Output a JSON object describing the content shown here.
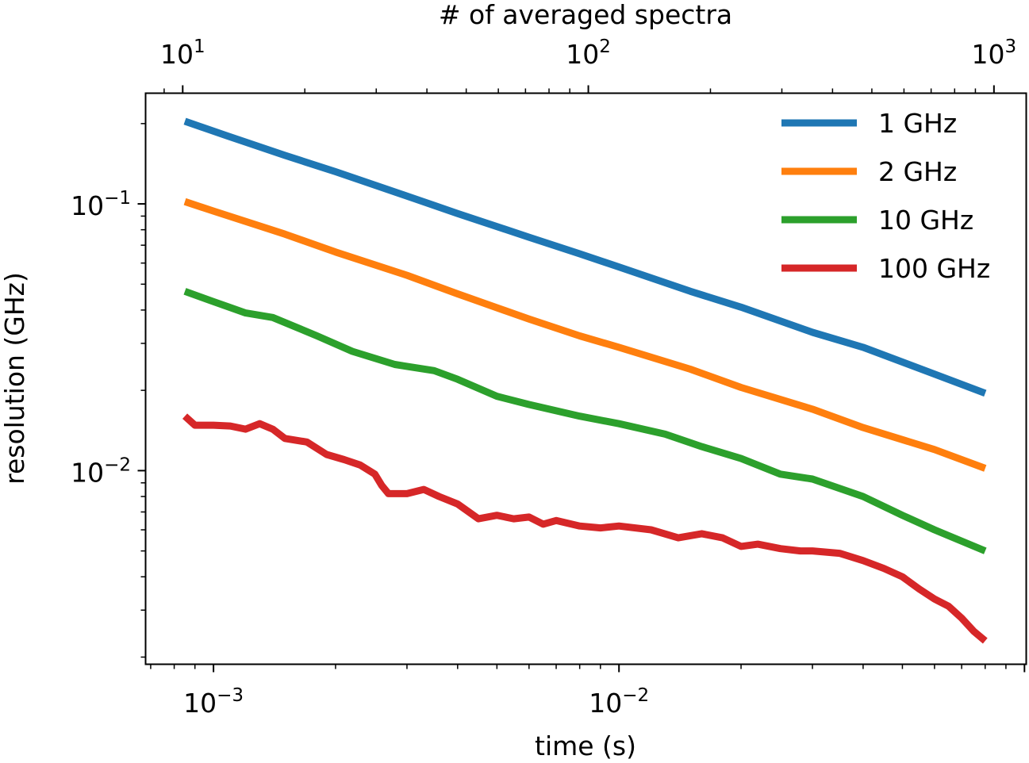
{
  "chart_data": {
    "type": "line",
    "xlabel": "time (s)",
    "x2label": "# of averaged spectra",
    "ylabel": "resolution (GHz)",
    "xscale": "log",
    "yscale": "log",
    "xlim": [
      0.00068,
      0.101
    ],
    "x2lim": [
      8.1,
      1201
    ],
    "ylim": [
      0.00188,
      0.26
    ],
    "x_ticks": [
      0.001,
      0.01
    ],
    "x_tick_labels": [
      {
        "base": "10",
        "exp": "−3"
      },
      {
        "base": "10",
        "exp": "−2"
      }
    ],
    "x2_ticks": [
      10,
      100,
      1000
    ],
    "x2_tick_labels": [
      {
        "base": "10",
        "exp": "1"
      },
      {
        "base": "10",
        "exp": "2"
      },
      {
        "base": "10",
        "exp": "3"
      }
    ],
    "y_ticks": [
      0.1,
      0.01
    ],
    "y_tick_labels": [
      {
        "base": "10",
        "exp": "−1"
      },
      {
        "base": "10",
        "exp": "−2"
      }
    ],
    "grid": false,
    "legend_position": "top-right",
    "series": [
      {
        "name": "1 GHz",
        "color": "#1f77b4",
        "points": [
          [
            0.00085,
            0.204
          ],
          [
            0.00108,
            0.18
          ],
          [
            0.0015,
            0.152
          ],
          [
            0.002,
            0.132
          ],
          [
            0.003,
            0.107
          ],
          [
            0.004,
            0.092
          ],
          [
            0.006,
            0.075
          ],
          [
            0.008,
            0.065
          ],
          [
            0.01,
            0.058
          ],
          [
            0.015,
            0.047
          ],
          [
            0.02,
            0.041
          ],
          [
            0.03,
            0.033
          ],
          [
            0.04,
            0.029
          ],
          [
            0.06,
            0.023
          ],
          [
            0.08,
            0.0195
          ]
        ]
      },
      {
        "name": "2 GHz",
        "color": "#ff7f0e",
        "points": [
          [
            0.00085,
            0.102
          ],
          [
            0.001,
            0.094
          ],
          [
            0.0015,
            0.077
          ],
          [
            0.002,
            0.066
          ],
          [
            0.003,
            0.054
          ],
          [
            0.004,
            0.046
          ],
          [
            0.006,
            0.037
          ],
          [
            0.008,
            0.032
          ],
          [
            0.01,
            0.029
          ],
          [
            0.015,
            0.024
          ],
          [
            0.02,
            0.0205
          ],
          [
            0.03,
            0.017
          ],
          [
            0.04,
            0.0145
          ],
          [
            0.06,
            0.012
          ],
          [
            0.08,
            0.0102
          ]
        ]
      },
      {
        "name": "10 GHz",
        "color": "#2ca02c",
        "points": [
          [
            0.00085,
            0.047
          ],
          [
            0.001,
            0.043
          ],
          [
            0.0012,
            0.039
          ],
          [
            0.0014,
            0.0375
          ],
          [
            0.0018,
            0.032
          ],
          [
            0.0022,
            0.028
          ],
          [
            0.0028,
            0.025
          ],
          [
            0.0035,
            0.0237
          ],
          [
            0.004,
            0.022
          ],
          [
            0.005,
            0.019
          ],
          [
            0.006,
            0.0177
          ],
          [
            0.008,
            0.016
          ],
          [
            0.01,
            0.015
          ],
          [
            0.013,
            0.0137
          ],
          [
            0.016,
            0.0123
          ],
          [
            0.02,
            0.0111
          ],
          [
            0.025,
            0.0097
          ],
          [
            0.03,
            0.0093
          ],
          [
            0.04,
            0.008
          ],
          [
            0.05,
            0.0068
          ],
          [
            0.06,
            0.006
          ],
          [
            0.08,
            0.005
          ]
        ]
      },
      {
        "name": "100 GHz",
        "color": "#d62728",
        "points": [
          [
            0.00085,
            0.016
          ],
          [
            0.0009,
            0.0148
          ],
          [
            0.001,
            0.0148
          ],
          [
            0.0011,
            0.0147
          ],
          [
            0.0012,
            0.0143
          ],
          [
            0.0013,
            0.015
          ],
          [
            0.0014,
            0.0143
          ],
          [
            0.0015,
            0.0132
          ],
          [
            0.0017,
            0.0128
          ],
          [
            0.0019,
            0.0115
          ],
          [
            0.0021,
            0.011
          ],
          [
            0.0023,
            0.0105
          ],
          [
            0.0025,
            0.0097
          ],
          [
            0.0026,
            0.0088
          ],
          [
            0.0027,
            0.0082
          ],
          [
            0.003,
            0.0082
          ],
          [
            0.0033,
            0.0085
          ],
          [
            0.0036,
            0.008
          ],
          [
            0.004,
            0.0075
          ],
          [
            0.0045,
            0.0066
          ],
          [
            0.005,
            0.0068
          ],
          [
            0.0055,
            0.0066
          ],
          [
            0.006,
            0.0067
          ],
          [
            0.0065,
            0.0063
          ],
          [
            0.007,
            0.0065
          ],
          [
            0.008,
            0.0062
          ],
          [
            0.009,
            0.0061
          ],
          [
            0.01,
            0.0062
          ],
          [
            0.012,
            0.006
          ],
          [
            0.014,
            0.0056
          ],
          [
            0.016,
            0.0058
          ],
          [
            0.018,
            0.0056
          ],
          [
            0.02,
            0.0052
          ],
          [
            0.022,
            0.0053
          ],
          [
            0.025,
            0.0051
          ],
          [
            0.028,
            0.005
          ],
          [
            0.03,
            0.005
          ],
          [
            0.035,
            0.0049
          ],
          [
            0.04,
            0.0046
          ],
          [
            0.045,
            0.0043
          ],
          [
            0.05,
            0.004
          ],
          [
            0.055,
            0.0036
          ],
          [
            0.06,
            0.0033
          ],
          [
            0.065,
            0.0031
          ],
          [
            0.07,
            0.0028
          ],
          [
            0.075,
            0.0025
          ],
          [
            0.08,
            0.0023
          ]
        ]
      }
    ]
  }
}
